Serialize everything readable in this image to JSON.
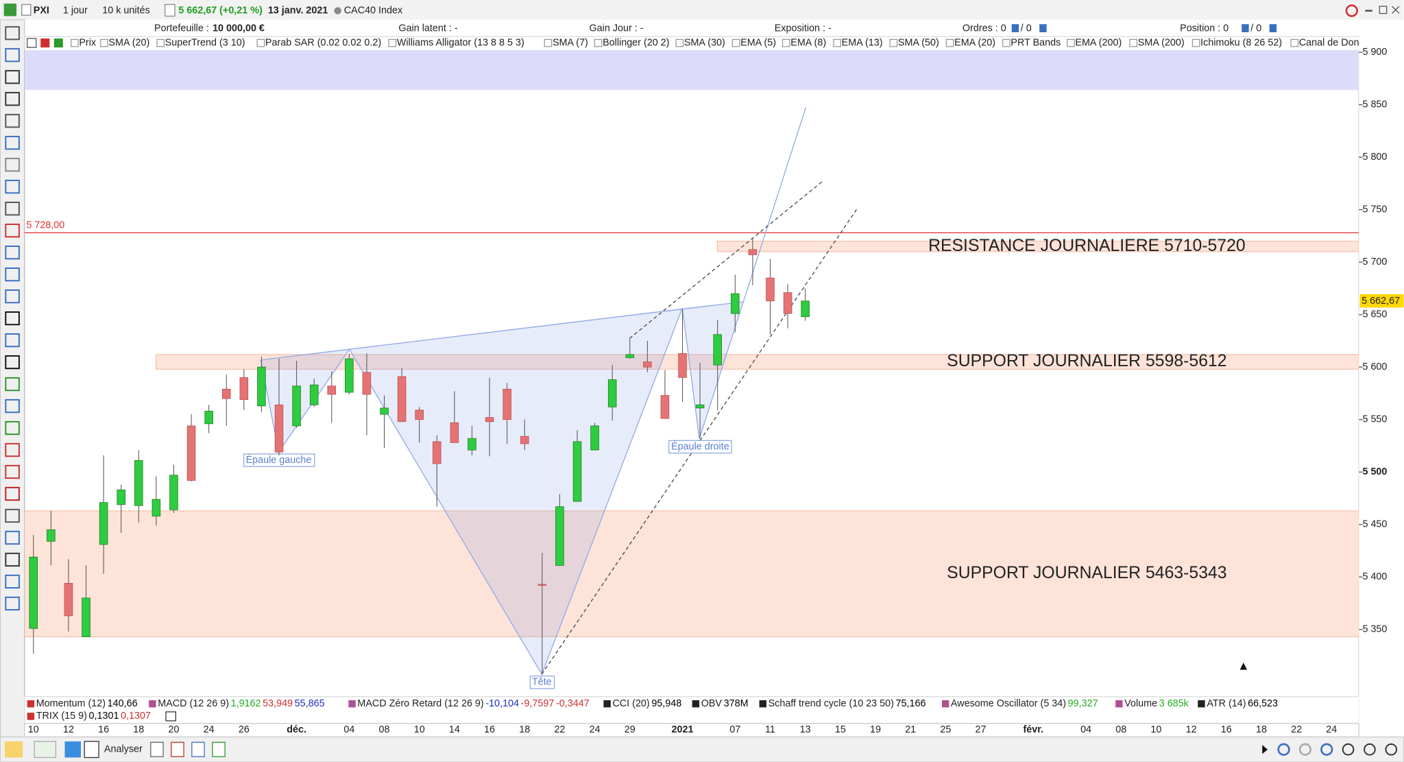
{
  "toolbar": {
    "symbol": "PXI",
    "period": "1 jour",
    "units": "10 k unités",
    "price": "5 662,67 (+0,21 %)",
    "date": "13 janv. 2021",
    "name": "CAC40 Index"
  },
  "info_bar": {
    "portfolio_label": "Portefeuille :",
    "portfolio_value": "10 000,00 €",
    "latent_gain": "Gain latent : -",
    "day_gain": "Gain Jour : -",
    "exposure": "Exposition : -",
    "orders": "Ordres : 0",
    "orders_pending": "/ 0",
    "position": "Position : 0",
    "position_pending": "/ 0"
  },
  "indicators": [
    "Prix",
    "SMA (20)",
    "SuperTrend (3 10)",
    "Parab SAR (0.02 0.02 0.2)",
    "Williams Alligator (13 8 8 5 3)",
    "SMA (7)",
    "Bollinger (20 2)",
    "SMA (30)",
    "EMA (5)",
    "EMA (8)",
    "EMA (13)",
    "SMA (50)",
    "EMA (20)",
    "PRT Bands",
    "EMA (200)",
    "SMA (200)",
    "Ichimoku (8 26 52)",
    "Canal de Don"
  ],
  "chart_data": {
    "type": "candlestick",
    "categories": [
      "10",
      null,
      "12",
      null,
      "16",
      null,
      "18",
      null,
      "20",
      null,
      "24",
      null,
      "26",
      null,
      null,
      "déc.",
      null,
      null,
      "04",
      null,
      "08",
      null,
      "10",
      null,
      "14",
      null,
      "16",
      null,
      "18",
      null,
      "22",
      null,
      "24",
      null,
      "29",
      null,
      null,
      "2021",
      null,
      null,
      "07",
      null,
      "11",
      null,
      "13",
      null,
      "15",
      null,
      "19",
      null,
      "21",
      null,
      "25",
      null,
      "27",
      null,
      null,
      "févr.",
      null,
      null,
      "04",
      null,
      "08",
      null,
      "10",
      null,
      "12",
      null,
      "16",
      null,
      "18",
      null,
      "22",
      null,
      "24"
    ],
    "open": [
      5351,
      5434,
      5394,
      5343,
      5431,
      5469,
      5468,
      5458,
      5464,
      5544,
      5546,
      5579,
      5590,
      5563,
      5564,
      5544,
      5564,
      5582,
      5576,
      5595,
      5555,
      5591,
      5559,
      5529,
      5547,
      5521,
      5552,
      5579,
      5534,
      5393,
      5411,
      5472,
      5521,
      5562,
      5609,
      5605,
      5573,
      5613,
      5561,
      5602,
      5651,
      5712,
      5685,
      5671,
      5648,
      null,
      null,
      null,
      null,
      null,
      null,
      null,
      null,
      null,
      null,
      null,
      null,
      null,
      null,
      null,
      null,
      null,
      null,
      null,
      null,
      null,
      null,
      null,
      null,
      null,
      null,
      null,
      null,
      null,
      null
    ],
    "high": [
      5440,
      5463,
      5417,
      5411,
      5516,
      5488,
      5521,
      5496,
      5507,
      5555,
      5564,
      5593,
      5598,
      5610,
      5608,
      5606,
      5589,
      5596,
      5613,
      5613,
      5573,
      5599,
      5562,
      5535,
      5577,
      5544,
      5590,
      5585,
      5550,
      5423,
      5479,
      5540,
      5547,
      5602,
      5627,
      5625,
      5597,
      5655,
      5604,
      5645,
      5688,
      5723,
      5703,
      5679,
      5675,
      null,
      null,
      null,
      null,
      null,
      null,
      null,
      null,
      null,
      null,
      null,
      null,
      null,
      null,
      null,
      null,
      null,
      null,
      null,
      null,
      null,
      null,
      null,
      null,
      null,
      null,
      null,
      null,
      null,
      null
    ],
    "low": [
      5327,
      5411,
      5348,
      5343,
      5403,
      5442,
      5452,
      5449,
      5461,
      5491,
      5537,
      5544,
      5559,
      5557,
      5516,
      5542,
      5562,
      5547,
      5574,
      5535,
      5523,
      5548,
      5528,
      5467,
      5528,
      5516,
      5515,
      5527,
      5521,
      5307,
      5411,
      5472,
      5521,
      5549,
      5608,
      5595,
      5551,
      5567,
      5532,
      5559,
      5633,
      5678,
      5631,
      5637,
      5644,
      null,
      null,
      null,
      null,
      null,
      null,
      null,
      null,
      null,
      null,
      null,
      null,
      null,
      null,
      null,
      null,
      null,
      null,
      null,
      null,
      null,
      null,
      null,
      null,
      null,
      null,
      null,
      null,
      null,
      null
    ],
    "close": [
      5419,
      5445,
      5363,
      5380,
      5471,
      5483,
      5511,
      5474,
      5497,
      5492,
      5558,
      5570,
      5569,
      5600,
      5519,
      5582,
      5583,
      5574,
      5608,
      5574,
      5561,
      5548,
      5550,
      5508,
      5528,
      5532,
      5548,
      5550,
      5527,
      5392,
      5467,
      5529,
      5544,
      5588,
      5612,
      5600,
      5551,
      5590,
      5564,
      5631,
      5670,
      5707,
      5663,
      5651,
      5663,
      null,
      null,
      null,
      null,
      null,
      null,
      null,
      null,
      null,
      null,
      null,
      null,
      null,
      null,
      null,
      null,
      null,
      null,
      null,
      null,
      null,
      null,
      null,
      null,
      null,
      null,
      null,
      null,
      null,
      null
    ],
    "up_color": "#2ecc40",
    "down_color": "#e57373",
    "ylim": [
      5286,
      5902
    ],
    "yticks": [
      {
        "value": 5900,
        "label": "5 900"
      },
      {
        "value": 5850,
        "label": "5 850"
      },
      {
        "value": 5800,
        "label": "5 800"
      },
      {
        "value": 5750,
        "label": "5 750"
      },
      {
        "value": 5700,
        "label": "5 700"
      },
      {
        "value": 5650,
        "label": "5 650"
      },
      {
        "value": 5600,
        "label": "5 600"
      },
      {
        "value": 5550,
        "label": "5 550"
      },
      {
        "value": 5500,
        "label": "5 500"
      },
      {
        "value": 5450,
        "label": "5 450"
      },
      {
        "value": 5400,
        "label": "5 400"
      },
      {
        "value": 5350,
        "label": "5 350"
      }
    ],
    "level": 5728,
    "level_label": "5 728,00",
    "level_color": "#e03030",
    "last": 5662.67,
    "last_label": "5 662,67",
    "zones": [
      {
        "range": [
          5864,
          5902
        ],
        "color": "#dcdcfa"
      },
      {
        "label": "RESISTANCE JOURNALIERE 5710-5720",
        "range": [
          5710,
          5720
        ],
        "color": "#fde3d8"
      },
      {
        "label": "SUPPORT JOURNALIER 5598-5612",
        "range": [
          5598,
          5612
        ],
        "color": "#fde3d8"
      },
      {
        "label": "SUPPORT JOURNALIER 5463-5343",
        "range": [
          5343,
          5463
        ],
        "color": "#fde3d8"
      }
    ],
    "annotations": [
      "Épaule gauche",
      "Tête",
      "Épaule droite"
    ]
  },
  "bottom_indicators": [
    {
      "name": "Momentum (12)",
      "values": [
        "140,66"
      ],
      "colors": [
        "#000000"
      ]
    },
    {
      "name": "MACD (12 26 9)",
      "values": [
        "1,9162",
        "53,949",
        "55,865"
      ],
      "colors": [
        "#22aa22",
        "#d03030",
        "#2030c0"
      ]
    },
    {
      "name": "MACD Zéro Retard (12 26 9)",
      "values": [
        "-10,104",
        "-9,7597",
        "-0,3447"
      ],
      "colors": [
        "#2030c0",
        "#d03030",
        "#d03030"
      ]
    },
    {
      "name": "CCI (20)",
      "values": [
        "95,948"
      ],
      "colors": [
        "#000000"
      ]
    },
    {
      "name": "OBV",
      "values": [
        "378M"
      ],
      "colors": [
        "#000000"
      ]
    },
    {
      "name": "Schaff trend cycle (10 23 50)",
      "values": [
        "75,166"
      ],
      "colors": [
        "#000000"
      ]
    },
    {
      "name": "Awesome Oscillator (5 34)",
      "values": [
        "99,327"
      ],
      "colors": [
        "#22aa22"
      ]
    },
    {
      "name": "Volume",
      "values": [
        "3 685k"
      ],
      "colors": [
        "#22aa22"
      ]
    },
    {
      "name": "ATR (14)",
      "values": [
        "66,523"
      ],
      "colors": [
        "#000000"
      ]
    },
    {
      "name": "TRIX (15 9)",
      "values": [
        "0,1301",
        "0,1307"
      ],
      "colors": [
        "#000000",
        "#d03030"
      ]
    }
  ],
  "bottom_bar": {
    "button": "Analyser"
  }
}
